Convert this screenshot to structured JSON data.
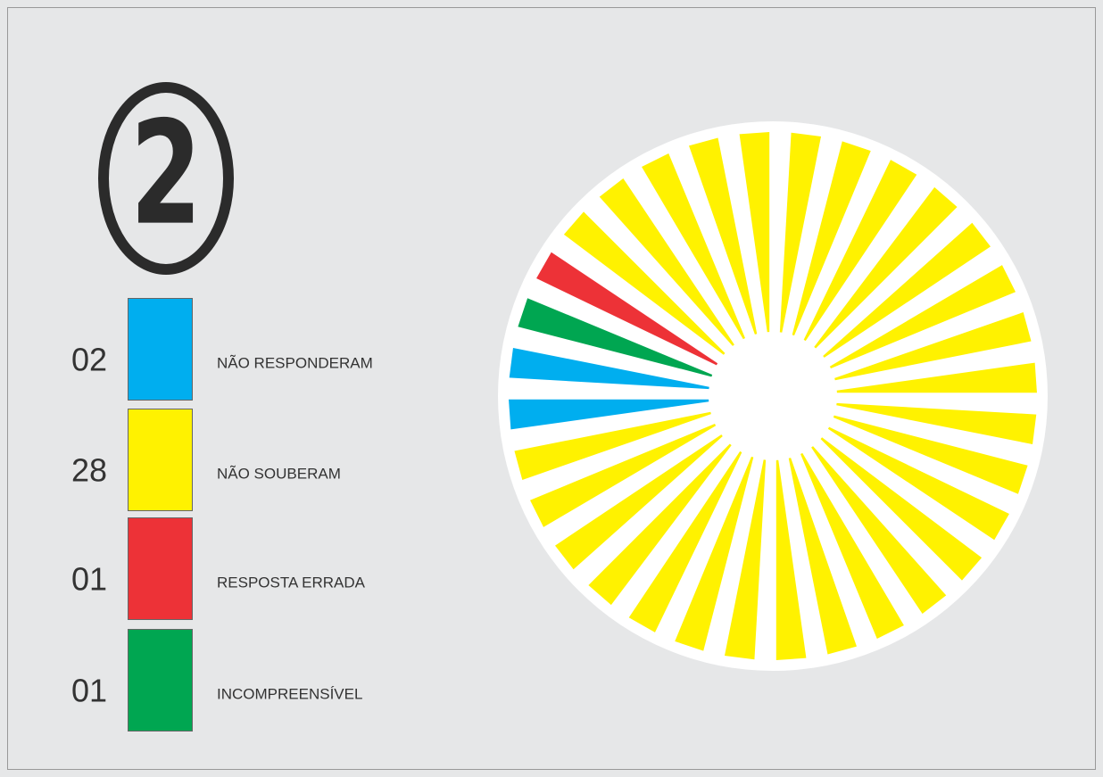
{
  "chart_data": {
    "type": "radial-units",
    "title": "2",
    "categories": [
      "NÃO RESPONDERAM",
      "NÃO SOUBERAM",
      "RESPOSTA ERRADA",
      "INCOMPREENSÍVEL"
    ],
    "values": [
      2,
      28,
      1,
      1
    ],
    "value_labels": [
      "02",
      "28",
      "01",
      "01"
    ],
    "colors": [
      "#00aeef",
      "#fff200",
      "#ed3237",
      "#00a651"
    ]
  }
}
